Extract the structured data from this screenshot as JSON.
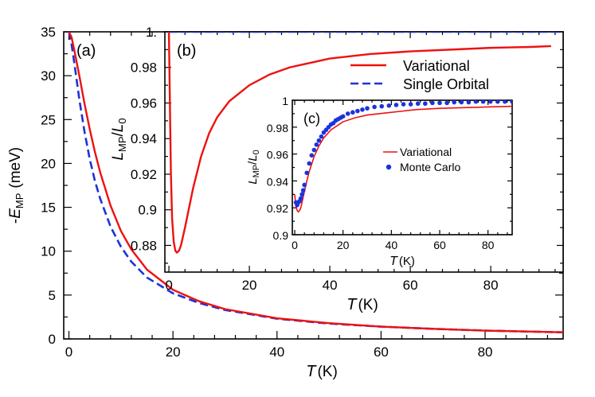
{
  "colors": {
    "variational": "#ee1111",
    "single_orbital": "#1a33dd",
    "monte_carlo": "#1a33dd",
    "axes": "#000000"
  },
  "chart_data": [
    {
      "id": "a",
      "type": "line",
      "panel_label": "(a)",
      "xlabel": {
        "var": "T",
        "unit": "(K)"
      },
      "ylabel": {
        "prefix": "-",
        "var": "E",
        "sub": "MP",
        "unit": "(meV)"
      },
      "xlim": [
        -1,
        95
      ],
      "ylim": [
        0,
        35
      ],
      "xticks": [
        0,
        20,
        40,
        60,
        80
      ],
      "yticks": [
        0,
        5,
        10,
        15,
        20,
        25,
        30,
        35
      ],
      "series": [
        {
          "name": "Variational",
          "style": "solid",
          "x": [
            0,
            0.5,
            1,
            2,
            3,
            4,
            5,
            6,
            8,
            10,
            12,
            15,
            20,
            25,
            30,
            40,
            50,
            60,
            70,
            80,
            95
          ],
          "y": [
            35,
            34.4,
            33.0,
            30.0,
            26.8,
            23.9,
            21.3,
            19.0,
            15.2,
            12.3,
            10.2,
            7.9,
            5.6,
            4.3,
            3.4,
            2.35,
            1.8,
            1.4,
            1.15,
            0.95,
            0.75
          ]
        },
        {
          "name": "Single Orbital",
          "style": "dashed",
          "x": [
            0,
            0.5,
            1,
            2,
            3,
            4,
            5,
            6,
            8,
            10,
            12,
            15,
            20,
            25,
            30,
            40,
            50,
            60,
            70,
            80,
            95
          ],
          "y": [
            35,
            33.6,
            31.6,
            27.3,
            23.6,
            20.5,
            18.0,
            16.0,
            12.8,
            10.5,
            8.8,
            7.0,
            5.2,
            4.1,
            3.3,
            2.3,
            1.75,
            1.4,
            1.15,
            0.95,
            0.75
          ]
        }
      ],
      "legend": {
        "entries": [
          "Variational",
          "Single Orbital"
        ],
        "placement": "top-right"
      }
    },
    {
      "id": "b",
      "type": "line",
      "panel_label": "(b)",
      "xlabel": {
        "var": "T",
        "unit": "(K)"
      },
      "ylabel": {
        "var": "L",
        "sub": "MP",
        "denom": "L",
        "denom_sub": "0"
      },
      "xlim": [
        -1,
        98
      ],
      "ylim": [
        0.865,
        1.0
      ],
      "xticks": [
        0,
        20,
        40,
        60,
        80
      ],
      "yticks": [
        0.88,
        0.9,
        0.92,
        0.94,
        0.96,
        0.98,
        1
      ],
      "ytick_labels": [
        "0.88",
        "0.9",
        "0.92",
        "0.94",
        "0.96",
        "0.98",
        "1."
      ],
      "series": [
        {
          "name": "Variational",
          "style": "solid",
          "x": [
            0,
            0.25,
            0.5,
            0.8,
            1.2,
            1.6,
            2.0,
            2.5,
            3,
            4,
            5,
            6,
            8,
            10,
            12,
            15,
            20,
            25,
            30,
            40,
            50,
            60,
            70,
            80,
            90,
            95
          ],
          "y": [
            1.0,
            0.96,
            0.92,
            0.895,
            0.882,
            0.877,
            0.876,
            0.877,
            0.88,
            0.89,
            0.901,
            0.912,
            0.93,
            0.943,
            0.952,
            0.961,
            0.97,
            0.976,
            0.98,
            0.985,
            0.9875,
            0.989,
            0.99,
            0.991,
            0.9915,
            0.992
          ]
        },
        {
          "name": "Single Orbital",
          "style": "dashed",
          "x": [
            0,
            98
          ],
          "y": [
            1.0,
            1.0
          ]
        }
      ],
      "legend": {
        "entries": [
          "Variational",
          "Single Orbital"
        ],
        "placement": "top-right"
      }
    },
    {
      "id": "c",
      "type": "line",
      "panel_label": "(c)",
      "xlabel": {
        "var": "T",
        "unit": "(K)"
      },
      "ylabel": {
        "var": "L",
        "sub": "MP",
        "denom": "L",
        "denom_sub": "0"
      },
      "xlim": [
        -1,
        90
      ],
      "ylim": [
        0.9,
        1.0
      ],
      "xticks": [
        0,
        20,
        40,
        60,
        80
      ],
      "yticks": [
        0.9,
        0.92,
        0.94,
        0.96,
        0.98,
        1
      ],
      "ytick_labels": [
        "0.9",
        "0.92",
        "0.94",
        "0.96",
        "0.98",
        "1"
      ],
      "series": [
        {
          "name": "Variational",
          "style": "solid",
          "x": [
            0,
            0.5,
            1,
            1.5,
            2,
            2.5,
            3,
            4,
            5,
            6,
            8,
            10,
            12,
            15,
            20,
            25,
            30,
            40,
            50,
            60,
            70,
            80,
            90
          ],
          "y": [
            0.93,
            0.921,
            0.918,
            0.917,
            0.918,
            0.92,
            0.924,
            0.932,
            0.94,
            0.947,
            0.958,
            0.966,
            0.972,
            0.978,
            0.984,
            0.987,
            0.989,
            0.991,
            0.993,
            0.994,
            0.9945,
            0.995,
            0.9955
          ]
        },
        {
          "name": "Monte Carlo",
          "style": "markers",
          "x": [
            0.5,
            1,
            1.5,
            2,
            2.5,
            3,
            3.5,
            4,
            5,
            6,
            7,
            8,
            9,
            10,
            11,
            12,
            13,
            14,
            15,
            16,
            17,
            18,
            19,
            20,
            22,
            24,
            26,
            28,
            30,
            33,
            36,
            39,
            42,
            45,
            48,
            51,
            54,
            57,
            60,
            63,
            66,
            69,
            72,
            75,
            78,
            81,
            84,
            87,
            90
          ],
          "y": [
            0.924,
            0.922,
            0.924,
            0.925,
            0.927,
            0.93,
            0.933,
            0.937,
            0.946,
            0.953,
            0.959,
            0.963,
            0.967,
            0.97,
            0.973,
            0.976,
            0.978,
            0.98,
            0.982,
            0.983,
            0.985,
            0.986,
            0.987,
            0.988,
            0.99,
            0.991,
            0.992,
            0.993,
            0.994,
            0.995,
            0.9955,
            0.996,
            0.9965,
            0.997,
            0.997,
            0.9975,
            0.9975,
            0.998,
            0.998,
            0.998,
            0.9985,
            0.9985,
            0.9985,
            0.999,
            0.999,
            0.999,
            0.999,
            0.999,
            0.999
          ]
        }
      ],
      "legend": {
        "entries": [
          "Variational",
          "Monte Carlo"
        ],
        "placement": "right"
      }
    }
  ]
}
